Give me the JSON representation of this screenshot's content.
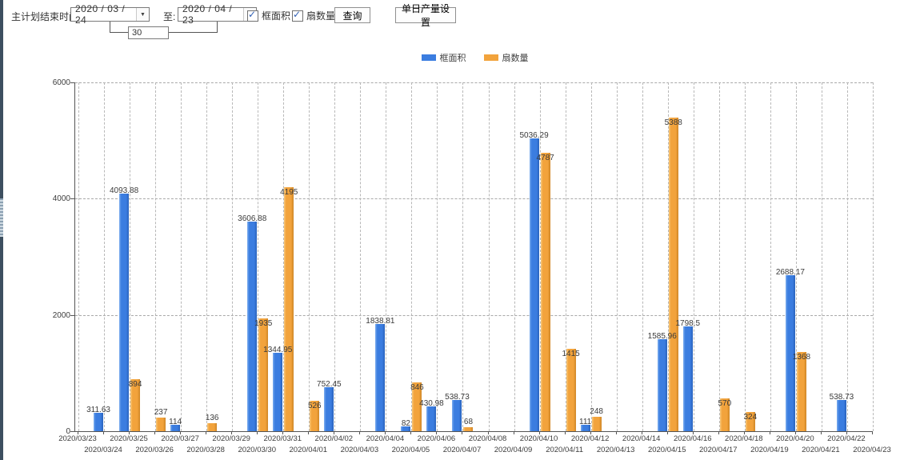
{
  "toolbar": {
    "label_plan_end": "主计划结束时间:",
    "date_from": "2020 / 03 / 24",
    "label_to": "至:",
    "date_to": "2020 / 04 / 23",
    "days_value": "30",
    "checkbox_frame_area": "框面积",
    "checkbox_fan_count": "扇数量",
    "query_button": "查询",
    "daily_output_button": "单日产量设置"
  },
  "legend": {
    "series1": "框面积",
    "series2": "扇数量"
  },
  "colors": {
    "frame_area_blue": "#3b7de0",
    "fan_count_orange": "#f2a33c"
  },
  "chart_data": {
    "type": "bar",
    "title": "",
    "xlabel": "",
    "ylabel": "",
    "ylim": [
      0,
      6000
    ],
    "yticks": [
      0,
      2000,
      4000,
      6000
    ],
    "grid": true,
    "legend_position": "top-center",
    "categories": [
      "2020/03/23",
      "2020/03/24",
      "2020/03/25",
      "2020/03/26",
      "2020/03/27",
      "2020/03/28",
      "2020/03/29",
      "2020/03/30",
      "2020/03/31",
      "2020/04/01",
      "2020/04/02",
      "2020/04/03",
      "2020/04/04",
      "2020/04/05",
      "2020/04/06",
      "2020/04/07",
      "2020/04/08",
      "2020/04/09",
      "2020/04/10",
      "2020/04/11",
      "2020/04/12",
      "2020/04/13",
      "2020/04/14",
      "2020/04/15",
      "2020/04/16",
      "2020/04/17",
      "2020/04/18",
      "2020/04/19",
      "2020/04/20",
      "2020/04/21",
      "2020/04/22",
      "2020/04/23"
    ],
    "series": [
      {
        "name": "框面积",
        "color": "#3b7de0",
        "values": [
          null,
          311.63,
          4093.88,
          null,
          114,
          null,
          null,
          3606.88,
          1344.95,
          null,
          752.45,
          null,
          1838.81,
          82,
          430.98,
          538.73,
          null,
          null,
          5036.29,
          null,
          111,
          null,
          null,
          1585.96,
          1798.5,
          null,
          null,
          null,
          2688.17,
          null,
          538.73,
          null
        ]
      },
      {
        "name": "扇数量",
        "color": "#f2a33c",
        "values": [
          null,
          null,
          894,
          237,
          null,
          136,
          null,
          1935,
          4195,
          526,
          null,
          null,
          null,
          846,
          null,
          68,
          null,
          null,
          4787,
          1415,
          248,
          null,
          null,
          5388,
          null,
          570,
          324,
          null,
          1368,
          null,
          null,
          null
        ]
      }
    ]
  }
}
